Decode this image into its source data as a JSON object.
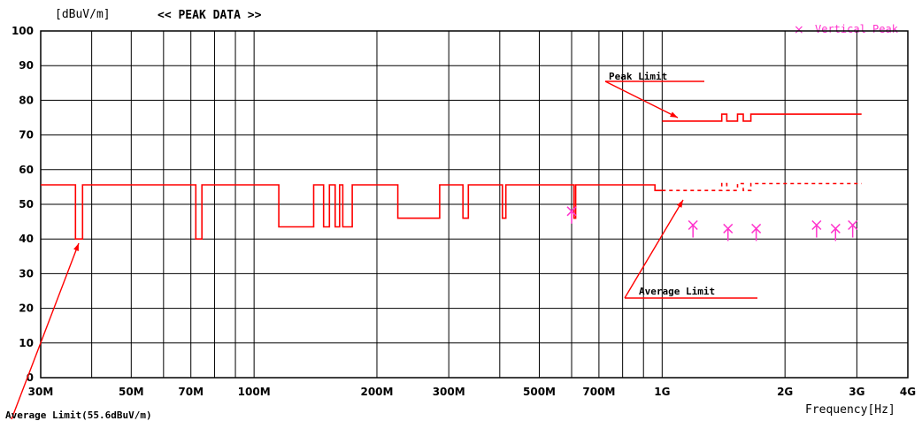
{
  "chart_data": {
    "type": "line",
    "title": "<< PEAK DATA >>",
    "ylabel": "[dBuV/m]",
    "xlabel": "Frequency[Hz]",
    "xscale": "log",
    "xlim": [
      30000000,
      4000000000
    ],
    "ylim": [
      0,
      100
    ],
    "grid": true,
    "x_ticks": [
      30000000,
      50000000,
      70000000,
      100000000,
      200000000,
      300000000,
      500000000,
      700000000,
      1000000000,
      2000000000,
      3000000000,
      4000000000
    ],
    "x_tick_labels": [
      "30M",
      "50M",
      "70M",
      "100M",
      "200M",
      "300M",
      "500M",
      "700M",
      "1G",
      "2G",
      "3G",
      "4G"
    ],
    "y_ticks": [
      0,
      10,
      20,
      30,
      40,
      50,
      60,
      70,
      80,
      90,
      100
    ],
    "y_tick_labels": [
      "0",
      "10",
      "20",
      "30",
      "40",
      "50",
      "60",
      "70",
      "80",
      "90",
      "100"
    ],
    "legend": {
      "position": "top-right",
      "marker": "×",
      "label": "Vertical Peak",
      "color": "#ff33cc"
    },
    "annotations": {
      "peak_limit": "Peak Limit",
      "average_limit": "Average Limit",
      "average_limit_note": "Average Limit(55.6dBuV/m)"
    },
    "series": [
      {
        "name": "Average Limit(55.6dBuV/m)",
        "style": "solid",
        "color": "#ff0000",
        "points": [
          [
            30000000,
            55.6
          ],
          [
            36500000,
            55.6
          ],
          [
            36500000,
            40
          ],
          [
            38000000,
            40
          ],
          [
            38000000,
            55.6
          ],
          [
            72000000,
            55.6
          ],
          [
            72000000,
            40
          ],
          [
            74500000,
            40
          ],
          [
            74500000,
            55.6
          ],
          [
            115000000,
            55.6
          ],
          [
            115000000,
            43.5
          ],
          [
            140000000,
            43.5
          ],
          [
            140000000,
            55.6
          ],
          [
            148000000,
            55.6
          ],
          [
            148000000,
            43.5
          ],
          [
            153000000,
            43.5
          ],
          [
            153000000,
            55.6
          ],
          [
            158000000,
            55.6
          ],
          [
            158000000,
            43.5
          ],
          [
            162000000,
            43.5
          ],
          [
            162000000,
            55.6
          ],
          [
            165000000,
            55.6
          ],
          [
            165000000,
            43.5
          ],
          [
            174000000,
            43.5
          ],
          [
            174000000,
            55.6
          ],
          [
            225000000,
            55.6
          ],
          [
            225000000,
            46
          ],
          [
            285000000,
            46
          ],
          [
            285000000,
            55.6
          ],
          [
            325000000,
            55.6
          ],
          [
            325000000,
            46
          ],
          [
            335000000,
            46
          ],
          [
            335000000,
            55.6
          ],
          [
            406000000,
            55.6
          ],
          [
            406000000,
            46
          ],
          [
            414000000,
            46
          ],
          [
            414000000,
            55.6
          ],
          [
            608000000,
            55.6
          ],
          [
            608000000,
            46
          ],
          [
            614000000,
            46
          ],
          [
            614000000,
            55.6
          ],
          [
            960000000,
            55.6
          ],
          [
            960000000,
            54
          ],
          [
            1000000000,
            54
          ]
        ]
      },
      {
        "name": "Peak Limit",
        "style": "solid",
        "color": "#ff0000",
        "points": [
          [
            1000000000,
            74
          ],
          [
            1400000000,
            74
          ],
          [
            1400000000,
            76
          ],
          [
            1440000000,
            76
          ],
          [
            1440000000,
            74
          ],
          [
            1530000000,
            74
          ],
          [
            1530000000,
            76
          ],
          [
            1580000000,
            76
          ],
          [
            1580000000,
            74
          ],
          [
            1650000000,
            74
          ],
          [
            1650000000,
            76
          ],
          [
            3080000000,
            76
          ]
        ]
      },
      {
        "name": "Average Limit",
        "style": "dashed",
        "color": "#ff0000",
        "points": [
          [
            1000000000,
            54
          ],
          [
            1400000000,
            54
          ],
          [
            1400000000,
            56
          ],
          [
            1440000000,
            56
          ],
          [
            1440000000,
            54
          ],
          [
            1530000000,
            54
          ],
          [
            1530000000,
            56
          ],
          [
            1580000000,
            56
          ],
          [
            1580000000,
            54
          ],
          [
            1650000000,
            54
          ],
          [
            1650000000,
            56
          ],
          [
            3080000000,
            56
          ]
        ]
      },
      {
        "name": "Vertical Peak",
        "style": "markers",
        "color": "#ff33cc",
        "points": [
          [
            600000000,
            48
          ],
          [
            1190000000,
            44
          ],
          [
            1450000000,
            43
          ],
          [
            1700000000,
            43
          ],
          [
            2390000000,
            44
          ],
          [
            2660000000,
            43
          ],
          [
            2930000000,
            44
          ]
        ]
      }
    ]
  }
}
